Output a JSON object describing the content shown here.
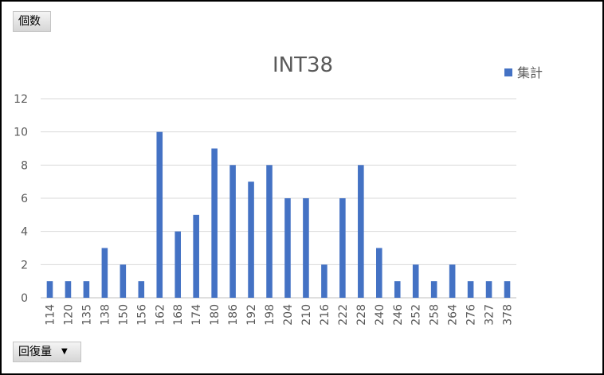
{
  "field_buttons": {
    "value_label": "個数",
    "axis_label": "回復量"
  },
  "chart_data": {
    "type": "bar",
    "title": "INT38",
    "legend": {
      "entries": [
        "集計"
      ],
      "position": "top-right"
    },
    "color": "#4472C4",
    "categories": [
      "114",
      "120",
      "135",
      "138",
      "150",
      "156",
      "162",
      "168",
      "174",
      "180",
      "186",
      "192",
      "198",
      "204",
      "210",
      "216",
      "222",
      "228",
      "240",
      "246",
      "252",
      "258",
      "264",
      "276",
      "327",
      "378"
    ],
    "series": [
      {
        "name": "集計",
        "values": [
          1,
          1,
          1,
          3,
          2,
          1,
          10,
          4,
          5,
          9,
          8,
          7,
          8,
          6,
          6,
          2,
          6,
          8,
          3,
          1,
          2,
          1,
          2,
          1,
          1,
          1
        ]
      }
    ],
    "ylim": [
      0,
      12
    ],
    "yticks": [
      0,
      2,
      4,
      6,
      8,
      10,
      12
    ],
    "grid": true
  }
}
